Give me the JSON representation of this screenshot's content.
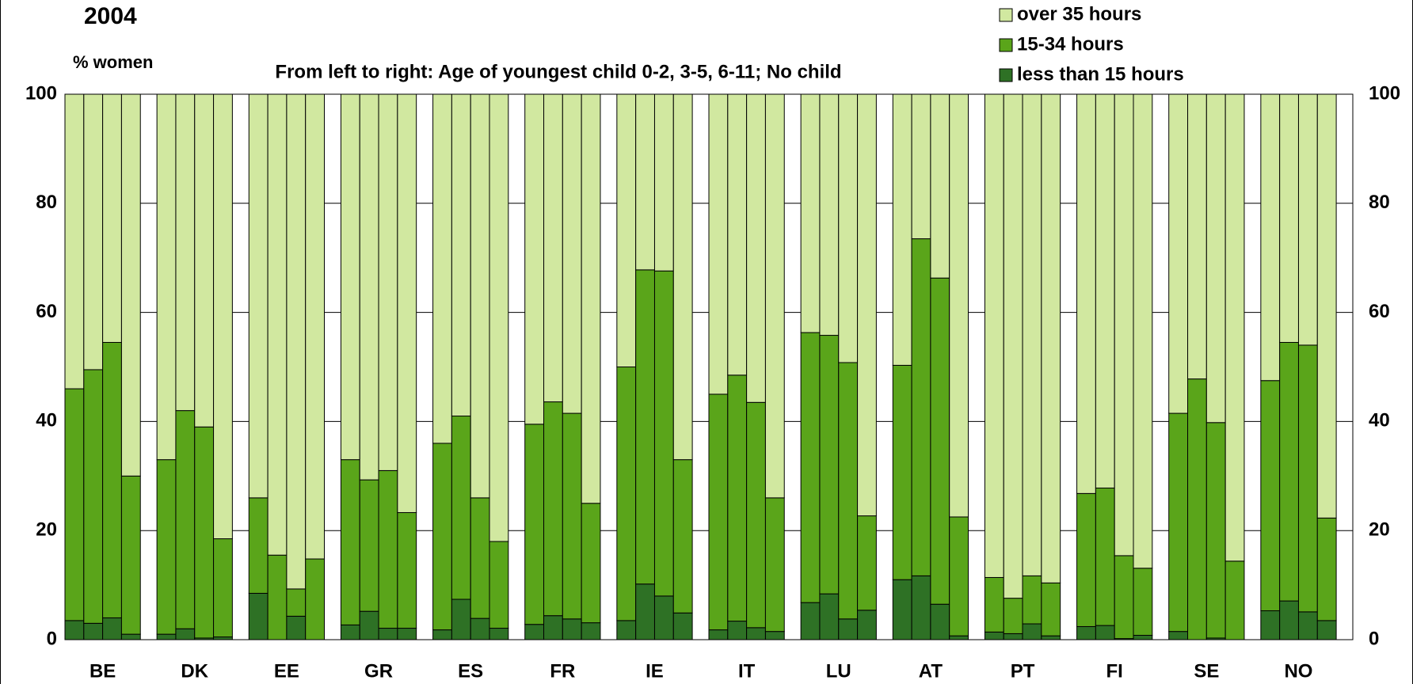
{
  "chart_data": {
    "type": "grouped-stacked-bar",
    "title": "2004",
    "y_label": "% women",
    "subtitle": "From left to right: Age of youngest child 0-2, 3-5, 6-11; No child",
    "categories": [
      "BE",
      "DK",
      "EE",
      "GR",
      "ES",
      "FR",
      "IE",
      "IT",
      "LU",
      "AT",
      "PT",
      "FI",
      "SE",
      "NO"
    ],
    "series": [
      {
        "name": "less than 15 hours",
        "color": "#2e7125",
        "values": [
          [
            3.5,
            3,
            4,
            1
          ],
          [
            1,
            2,
            0.3,
            0.5
          ],
          [
            8.5,
            0,
            4.3,
            0
          ],
          [
            2.7,
            5.2,
            2.1,
            2.1
          ],
          [
            1.8,
            7.4,
            3.9,
            2.1
          ],
          [
            2.8,
            4.4,
            3.8,
            3.1
          ],
          [
            3.5,
            10.2,
            8,
            4.9
          ],
          [
            1.8,
            3.4,
            2.2,
            1.5
          ],
          [
            6.8,
            8.4,
            3.8,
            5.4
          ],
          [
            11,
            11.7,
            6.5,
            0.7
          ],
          [
            1.4,
            1.1,
            2.9,
            0.7
          ],
          [
            2.4,
            2.6,
            0.2,
            0.8
          ],
          [
            1.5,
            0,
            0.3,
            0
          ],
          [
            5.3,
            7.1,
            5.1,
            3.5
          ]
        ]
      },
      {
        "name": "15-34 hours",
        "color": "#5aa51a",
        "values": [
          [
            42.5,
            46.5,
            50.5,
            29
          ],
          [
            32,
            40,
            38.7,
            18
          ],
          [
            17.5,
            15.5,
            5,
            14.8
          ],
          [
            30.3,
            24.1,
            28.9,
            21.2
          ],
          [
            34.2,
            33.6,
            22.1,
            15.9
          ],
          [
            36.7,
            39.2,
            37.7,
            21.9
          ],
          [
            46.5,
            57.6,
            59.6,
            28.1
          ],
          [
            43.2,
            45.1,
            41.3,
            24.5
          ],
          [
            49.5,
            47.4,
            47,
            17.3
          ],
          [
            39.3,
            61.8,
            59.8,
            21.8
          ],
          [
            10,
            6.5,
            8.8,
            9.7
          ],
          [
            24.4,
            25.2,
            15.2,
            12.3
          ],
          [
            40,
            47.8,
            39.5,
            14.4
          ],
          [
            42.2,
            47.4,
            48.9,
            18.8
          ]
        ]
      },
      {
        "name": "over 35 hours",
        "color": "#d1e8a0",
        "values": [
          [
            54,
            50.5,
            45.5,
            70
          ],
          [
            67,
            58,
            61,
            81.5
          ],
          [
            74,
            84.5,
            90.7,
            85.2
          ],
          [
            67,
            70.7,
            69,
            76.7
          ],
          [
            64,
            59,
            74,
            82
          ],
          [
            60.5,
            56.4,
            58.5,
            75
          ],
          [
            50,
            32.2,
            32.4,
            67
          ],
          [
            55,
            51.5,
            56.5,
            74
          ],
          [
            43.7,
            44.2,
            49.2,
            77.3
          ],
          [
            49.7,
            26.5,
            33.7,
            77.5
          ],
          [
            88.6,
            92.4,
            88.3,
            89.6
          ],
          [
            73.2,
            72.2,
            84.6,
            86.9
          ],
          [
            58.5,
            52.2,
            60.2,
            85.6
          ],
          [
            52.5,
            45.5,
            46,
            77.7
          ]
        ]
      }
    ],
    "ylim": [
      0,
      100
    ],
    "yticks": [
      0,
      20,
      40,
      60,
      80,
      100
    ],
    "y2lim": [
      0,
      100
    ],
    "y2ticks": [
      0,
      20,
      40,
      60,
      80,
      100
    ],
    "grid": true,
    "legend": "top-right"
  }
}
